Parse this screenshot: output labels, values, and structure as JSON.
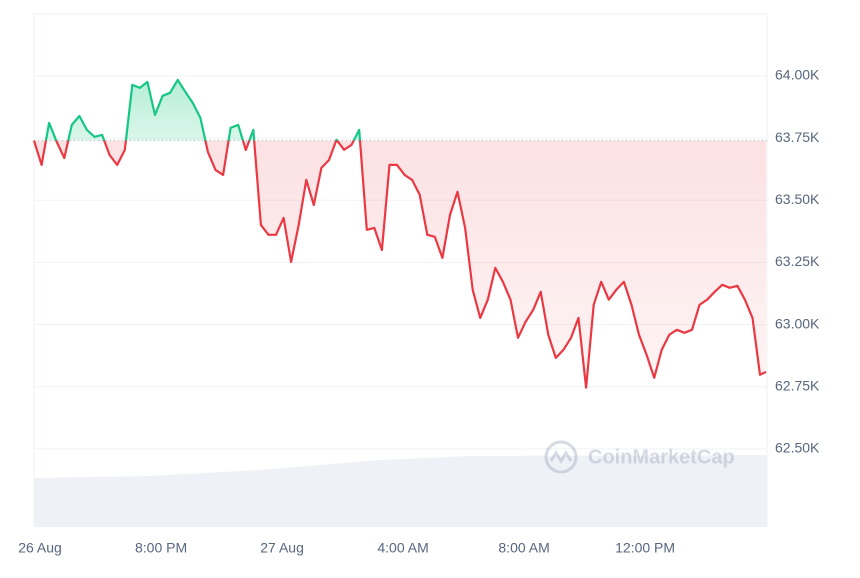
{
  "chart_data": {
    "type": "line",
    "baseline": 63740,
    "color_up": "#16c784",
    "color_down": "#ea3943",
    "grid": true,
    "watermark": "CoinMarketCap",
    "x": [
      15.8,
      16.05,
      16.3,
      16.55,
      16.8,
      17.05,
      17.3,
      17.55,
      17.8,
      18.05,
      18.3,
      18.55,
      18.8,
      19.05,
      19.3,
      19.55,
      19.8,
      20.05,
      20.3,
      20.55,
      20.8,
      21.05,
      21.3,
      21.55,
      21.8,
      22.05,
      22.3,
      22.55,
      22.8,
      23.05,
      23.3,
      23.55,
      23.8,
      24.05,
      24.3,
      24.55,
      24.8,
      25.05,
      25.3,
      25.55,
      25.8,
      26.05,
      26.3,
      26.55,
      26.8,
      27.05,
      27.3,
      27.55,
      27.8,
      28.05,
      28.3,
      28.55,
      28.8,
      29.05,
      29.3,
      29.55,
      29.8,
      30.05,
      30.3,
      30.55,
      30.8,
      31.05,
      31.3,
      31.55,
      31.8,
      32.05,
      32.3,
      32.55,
      32.8,
      33.05,
      33.3,
      33.55,
      33.8,
      34.05,
      34.3,
      34.55,
      34.8,
      35.05,
      35.3,
      35.55,
      35.8,
      36.05,
      36.3,
      36.55,
      36.8,
      37.05,
      37.3,
      37.55,
      37.8,
      38.05,
      38.3,
      38.55,
      38.8,
      39.05,
      39.3,
      39.55,
      39.8,
      40
    ],
    "values": [
      63740,
      63642,
      63811,
      63735,
      63670,
      63803,
      63839,
      63783,
      63755,
      63763,
      63682,
      63642,
      63702,
      63964,
      63952,
      63976,
      63843,
      63920,
      63932,
      63984,
      63936,
      63891,
      63831,
      63694,
      63622,
      63602,
      63791,
      63803,
      63702,
      63783,
      63401,
      63361,
      63361,
      63429,
      63252,
      63401,
      63582,
      63481,
      63630,
      63662,
      63743,
      63703,
      63723,
      63783,
      63381,
      63389,
      63300,
      63642,
      63642,
      63602,
      63582,
      63522,
      63361,
      63353,
      63268,
      63441,
      63534,
      63389,
      63140,
      63027,
      63100,
      63228,
      63172,
      63100,
      62947,
      63011,
      63059,
      63132,
      62959,
      62866,
      62898,
      62947,
      63027,
      62746,
      63079,
      63172,
      63100,
      63140,
      63172,
      63079,
      62959,
      62878,
      62786,
      62898,
      62959,
      62979,
      62967,
      62979,
      63079,
      63100,
      63132,
      63160,
      63148,
      63156,
      63100,
      63027,
      62798,
      62810
    ],
    "xlim": [
      15.8,
      40.03
    ],
    "xticks": [
      {
        "value": 16,
        "label": "26 Aug"
      },
      {
        "value": 20,
        "label": "8:00 PM"
      },
      {
        "value": 24,
        "label": "27 Aug"
      },
      {
        "value": 28,
        "label": "4:00 AM"
      },
      {
        "value": 32,
        "label": "8:00 AM"
      },
      {
        "value": 36,
        "label": "12:00 PM"
      }
    ],
    "ylim": [
      62186,
      64249
    ],
    "yticks": [
      {
        "value": 62500,
        "label": "62.50K"
      },
      {
        "value": 62750,
        "label": "62.75K"
      },
      {
        "value": 63000,
        "label": "63.00K"
      },
      {
        "value": 63250,
        "label": "63.25K"
      },
      {
        "value": 63500,
        "label": "63.50K"
      },
      {
        "value": 63750,
        "label": "63.75K"
      },
      {
        "value": 64000,
        "label": "64.00K"
      }
    ]
  }
}
